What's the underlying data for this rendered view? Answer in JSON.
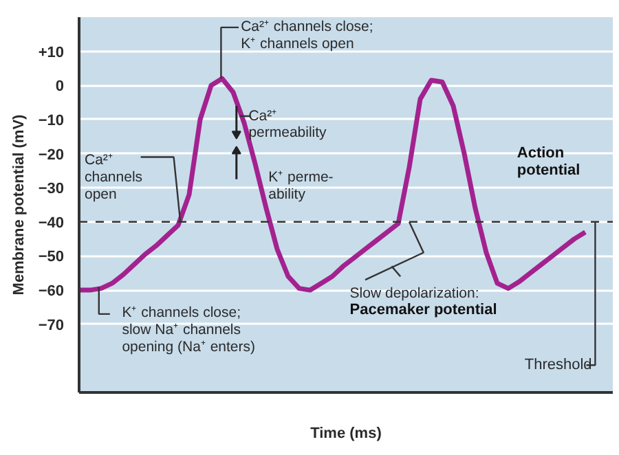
{
  "chart_data": {
    "type": "line",
    "ylabel": "Membrane potential (mV)",
    "xlabel": "Time (ms)",
    "categories": [
      null,
      null,
      null,
      null,
      null,
      null,
      null,
      null,
      null,
      null,
      null,
      null,
      null,
      null,
      null,
      null,
      null,
      null,
      null,
      null,
      null,
      null,
      null,
      null,
      null,
      null,
      null,
      null,
      null,
      null,
      null,
      null,
      null,
      null,
      null,
      null,
      null,
      null,
      null,
      null,
      null,
      null,
      null,
      null,
      null,
      null,
      null
    ],
    "series": [
      {
        "color": "#a3228f",
        "values": [
          -60,
          -60,
          -59.5,
          -58,
          -55.5,
          -52.5,
          -49.5,
          -47,
          -44,
          -41,
          -32,
          -10,
          0,
          2,
          -2,
          -11,
          -23,
          -36,
          -48,
          -56,
          -59.5,
          -60,
          -58,
          -56,
          -53,
          -50.5,
          -48,
          -45.5,
          -43,
          -40.5,
          -24,
          -4,
          1.5,
          1,
          -6,
          -20,
          -36,
          -49,
          -58,
          -59.5,
          -57.5,
          -55,
          -52.5,
          -50,
          -47.5,
          -45,
          -43
        ]
      }
    ],
    "ylim": [
      -90,
      20
    ],
    "yticks": [
      {
        "value": 10,
        "label": "+10"
      },
      0,
      -10,
      -20,
      -30,
      -40,
      -50,
      -60,
      -70
    ],
    "grid": "y",
    "marker": "none",
    "line_style": "solid",
    "ref_lines": [
      {
        "axis": "y",
        "value": -40,
        "label": "Threshold",
        "line_style": "dashed",
        "color": "#333333"
      }
    ],
    "annotations": [
      "Ca²⁺ channels close;\nK⁺ channels open",
      "Ca²⁺\npermeability",
      "K⁺ perme-\nability",
      "Ca²⁺\nchannels\nopen",
      "Action\npotential",
      "K⁺ channels close;\nslow Na⁺ channels\nopening (Na⁺ enters)",
      "Slow depolarization:\nPacemaker potential"
    ]
  }
}
